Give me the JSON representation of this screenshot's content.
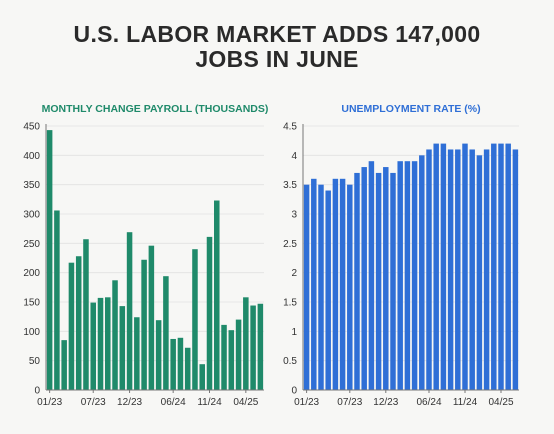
{
  "title": {
    "line1": "U.S. LABOR MARKET ADDS 147,000",
    "line2": "JOBS IN JUNE"
  },
  "colors": {
    "payroll": "#1f8a6a",
    "unemployment": "#2f6fd6",
    "axis": "#777777",
    "grid": "#e2e2e2"
  },
  "chart_data": [
    {
      "type": "bar",
      "title": "MONTHLY CHANGE PAYROLL (THOUSANDS)",
      "ylim": [
        0,
        450
      ],
      "yticks": [
        0,
        50,
        100,
        150,
        200,
        250,
        300,
        350,
        400,
        450
      ],
      "xtick_labels": [
        {
          "label": "01/23",
          "index": 0
        },
        {
          "label": "07/23",
          "index": 6
        },
        {
          "label": "12/23",
          "index": 11
        },
        {
          "label": "06/24",
          "index": 17
        },
        {
          "label": "11/24",
          "index": 22
        },
        {
          "label": "04/25",
          "index": 27
        }
      ],
      "categories": [
        "01/23",
        "02/23",
        "03/23",
        "04/23",
        "05/23",
        "06/23",
        "07/23",
        "08/23",
        "09/23",
        "10/23",
        "11/23",
        "12/23",
        "01/24",
        "02/24",
        "03/24",
        "04/24",
        "05/24",
        "06/24",
        "07/24",
        "08/24",
        "09/24",
        "10/24",
        "11/24",
        "12/24",
        "01/25",
        "02/25",
        "03/25",
        "04/25",
        "05/25",
        "06/25"
      ],
      "values": [
        443,
        306,
        85,
        217,
        228,
        257,
        149,
        157,
        158,
        187,
        143,
        269,
        124,
        222,
        246,
        119,
        194,
        87,
        89,
        72,
        240,
        44,
        261,
        323,
        111,
        102,
        120,
        158,
        144,
        147
      ]
    },
    {
      "type": "bar",
      "title": "UNEMPLOYMENT RATE (%)",
      "ylim": [
        0,
        4.5
      ],
      "yticks": [
        0,
        0.5,
        1,
        1.5,
        2,
        2.5,
        3,
        3.5,
        4,
        4.5
      ],
      "xtick_labels": [
        {
          "label": "01/23",
          "index": 0
        },
        {
          "label": "07/23",
          "index": 6
        },
        {
          "label": "12/23",
          "index": 11
        },
        {
          "label": "06/24",
          "index": 17
        },
        {
          "label": "11/24",
          "index": 22
        },
        {
          "label": "04/25",
          "index": 27
        }
      ],
      "categories": [
        "01/23",
        "02/23",
        "03/23",
        "04/23",
        "05/23",
        "06/23",
        "07/23",
        "08/23",
        "09/23",
        "10/23",
        "11/23",
        "12/23",
        "01/24",
        "02/24",
        "03/24",
        "04/24",
        "05/24",
        "06/24",
        "07/24",
        "08/24",
        "09/24",
        "10/24",
        "11/24",
        "12/24",
        "01/25",
        "02/25",
        "03/25",
        "04/25",
        "05/25",
        "06/25"
      ],
      "values": [
        3.5,
        3.6,
        3.5,
        3.4,
        3.6,
        3.6,
        3.5,
        3.7,
        3.8,
        3.9,
        3.7,
        3.8,
        3.7,
        3.9,
        3.9,
        3.9,
        4.0,
        4.1,
        4.2,
        4.2,
        4.1,
        4.1,
        4.2,
        4.1,
        4.0,
        4.1,
        4.2,
        4.2,
        4.2,
        4.1
      ]
    }
  ]
}
